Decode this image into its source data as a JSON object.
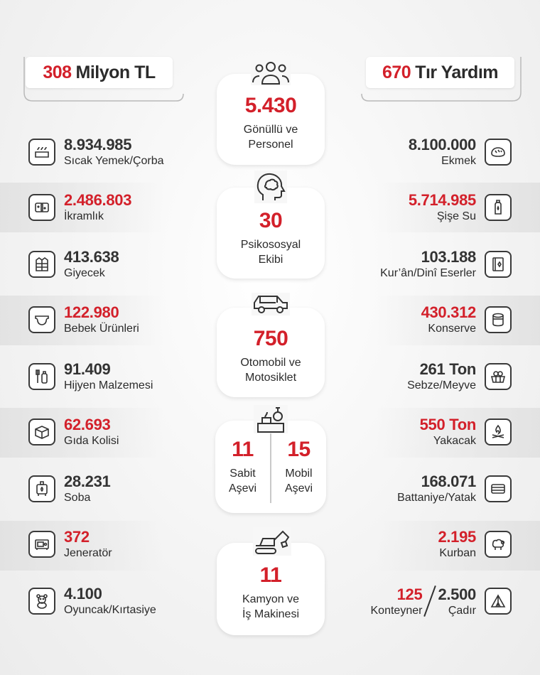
{
  "headers": {
    "left": {
      "number": "308",
      "text": "Milyon TL"
    },
    "right": {
      "number": "670",
      "text": "Tır Yardım"
    }
  },
  "left_items": [
    {
      "value": "8.934.985",
      "label": "Sıcak Yemek/Çorba",
      "color": "dark",
      "icon": "food-box-icon"
    },
    {
      "value": "2.486.803",
      "label": "İkramlık",
      "color": "red",
      "icon": "biscuit-icon"
    },
    {
      "value": "413.638",
      "label": "Giyecek",
      "color": "dark",
      "icon": "jacket-icon"
    },
    {
      "value": "122.980",
      "label": "Bebek Ürünleri",
      "color": "red",
      "icon": "diaper-icon"
    },
    {
      "value": "91.409",
      "label": "Hijyen Malzemesi",
      "color": "dark",
      "icon": "hygiene-icon"
    },
    {
      "value": "62.693",
      "label": "Gıda Kolisi",
      "color": "red",
      "icon": "package-icon"
    },
    {
      "value": "28.231",
      "label": "Soba",
      "color": "dark",
      "icon": "stove-icon"
    },
    {
      "value": "372",
      "label": "Jeneratör",
      "color": "red",
      "icon": "generator-icon"
    },
    {
      "value": "4.100",
      "label": "Oyuncak/Kırtasiye",
      "color": "dark",
      "icon": "teddy-bear-icon"
    }
  ],
  "right_items": [
    {
      "value": "8.100.000",
      "label": "Ekmek",
      "color": "dark",
      "icon": "bread-icon"
    },
    {
      "value": "5.714.985",
      "label": "Şişe Su",
      "color": "red",
      "icon": "water-bottle-icon"
    },
    {
      "value": "103.188",
      "label": "Kur’ân/Dinî Eserler",
      "color": "dark",
      "icon": "quran-icon"
    },
    {
      "value": "430.312",
      "label": "Konserve",
      "color": "red",
      "icon": "can-icon"
    },
    {
      "value": "261 Ton",
      "label": "Sebze/Meyve",
      "color": "dark",
      "icon": "vegetable-basket-icon"
    },
    {
      "value": "550 Ton",
      "label": "Yakacak",
      "color": "red",
      "icon": "firewood-icon"
    },
    {
      "value": "168.071",
      "label": "Battaniye/Yatak",
      "color": "dark",
      "icon": "blanket-icon"
    },
    {
      "value": "2.195",
      "label": "Kurban",
      "color": "red",
      "icon": "sheep-icon"
    }
  ],
  "last_right": {
    "a_value": "125",
    "a_label": "Konteyner",
    "b_value": "2.500",
    "b_label": "Çadır",
    "icon": "tent-icon"
  },
  "center_cards": [
    {
      "value": "5.430",
      "label_line1": "Gönüllü ve",
      "label_line2": "Personel",
      "icon": "people-group-icon"
    },
    {
      "value": "30",
      "label_line1": "Psikososyal",
      "label_line2": "Ekibi",
      "icon": "brain-head-icon"
    },
    {
      "value": "750",
      "label_line1": "Otomobil ve",
      "label_line2": "Motosiklet",
      "icon": "car-icon"
    },
    {
      "value": "11",
      "label_line1": "Kamyon ve",
      "label_line2": "İş  Makinesi",
      "icon": "excavator-icon"
    }
  ],
  "kitchen_card": {
    "icon": "kitchen-icon",
    "left": {
      "value": "11",
      "line1": "Sabit",
      "line2": "Aşevi"
    },
    "right": {
      "value": "15",
      "line1": "Mobil",
      "line2": "Aşevi"
    }
  },
  "colors": {
    "accent": "#d3202a",
    "text": "#333333"
  }
}
